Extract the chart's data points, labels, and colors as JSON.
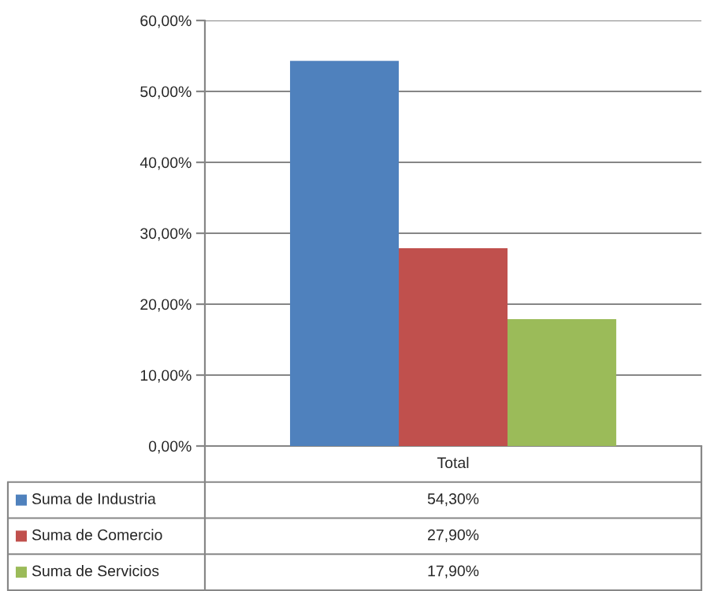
{
  "chart_data": {
    "type": "bar",
    "categories": [
      "Total"
    ],
    "series": [
      {
        "name": "Suma de Industria",
        "color": "#4f81bd",
        "values": [
          54.3
        ]
      },
      {
        "name": "Suma de Comercio",
        "color": "#c0504d",
        "values": [
          27.9
        ]
      },
      {
        "name": "Suma de Servicios",
        "color": "#9bbb59",
        "values": [
          17.9
        ]
      }
    ],
    "annotations": [
      "54,30%",
      "27,90%",
      "17,90%"
    ],
    "ylim": [
      0,
      60
    ],
    "yticks": [
      {
        "value": 0,
        "label": "0,00%"
      },
      {
        "value": 10,
        "label": "10,00%"
      },
      {
        "value": 20,
        "label": "20,00%"
      },
      {
        "value": 30,
        "label": "30,00%"
      },
      {
        "value": 40,
        "label": "40,00%"
      },
      {
        "value": 50,
        "label": "50,00%"
      },
      {
        "value": 60,
        "label": "60,00%"
      }
    ],
    "grid": "y",
    "legend": "bottom"
  }
}
